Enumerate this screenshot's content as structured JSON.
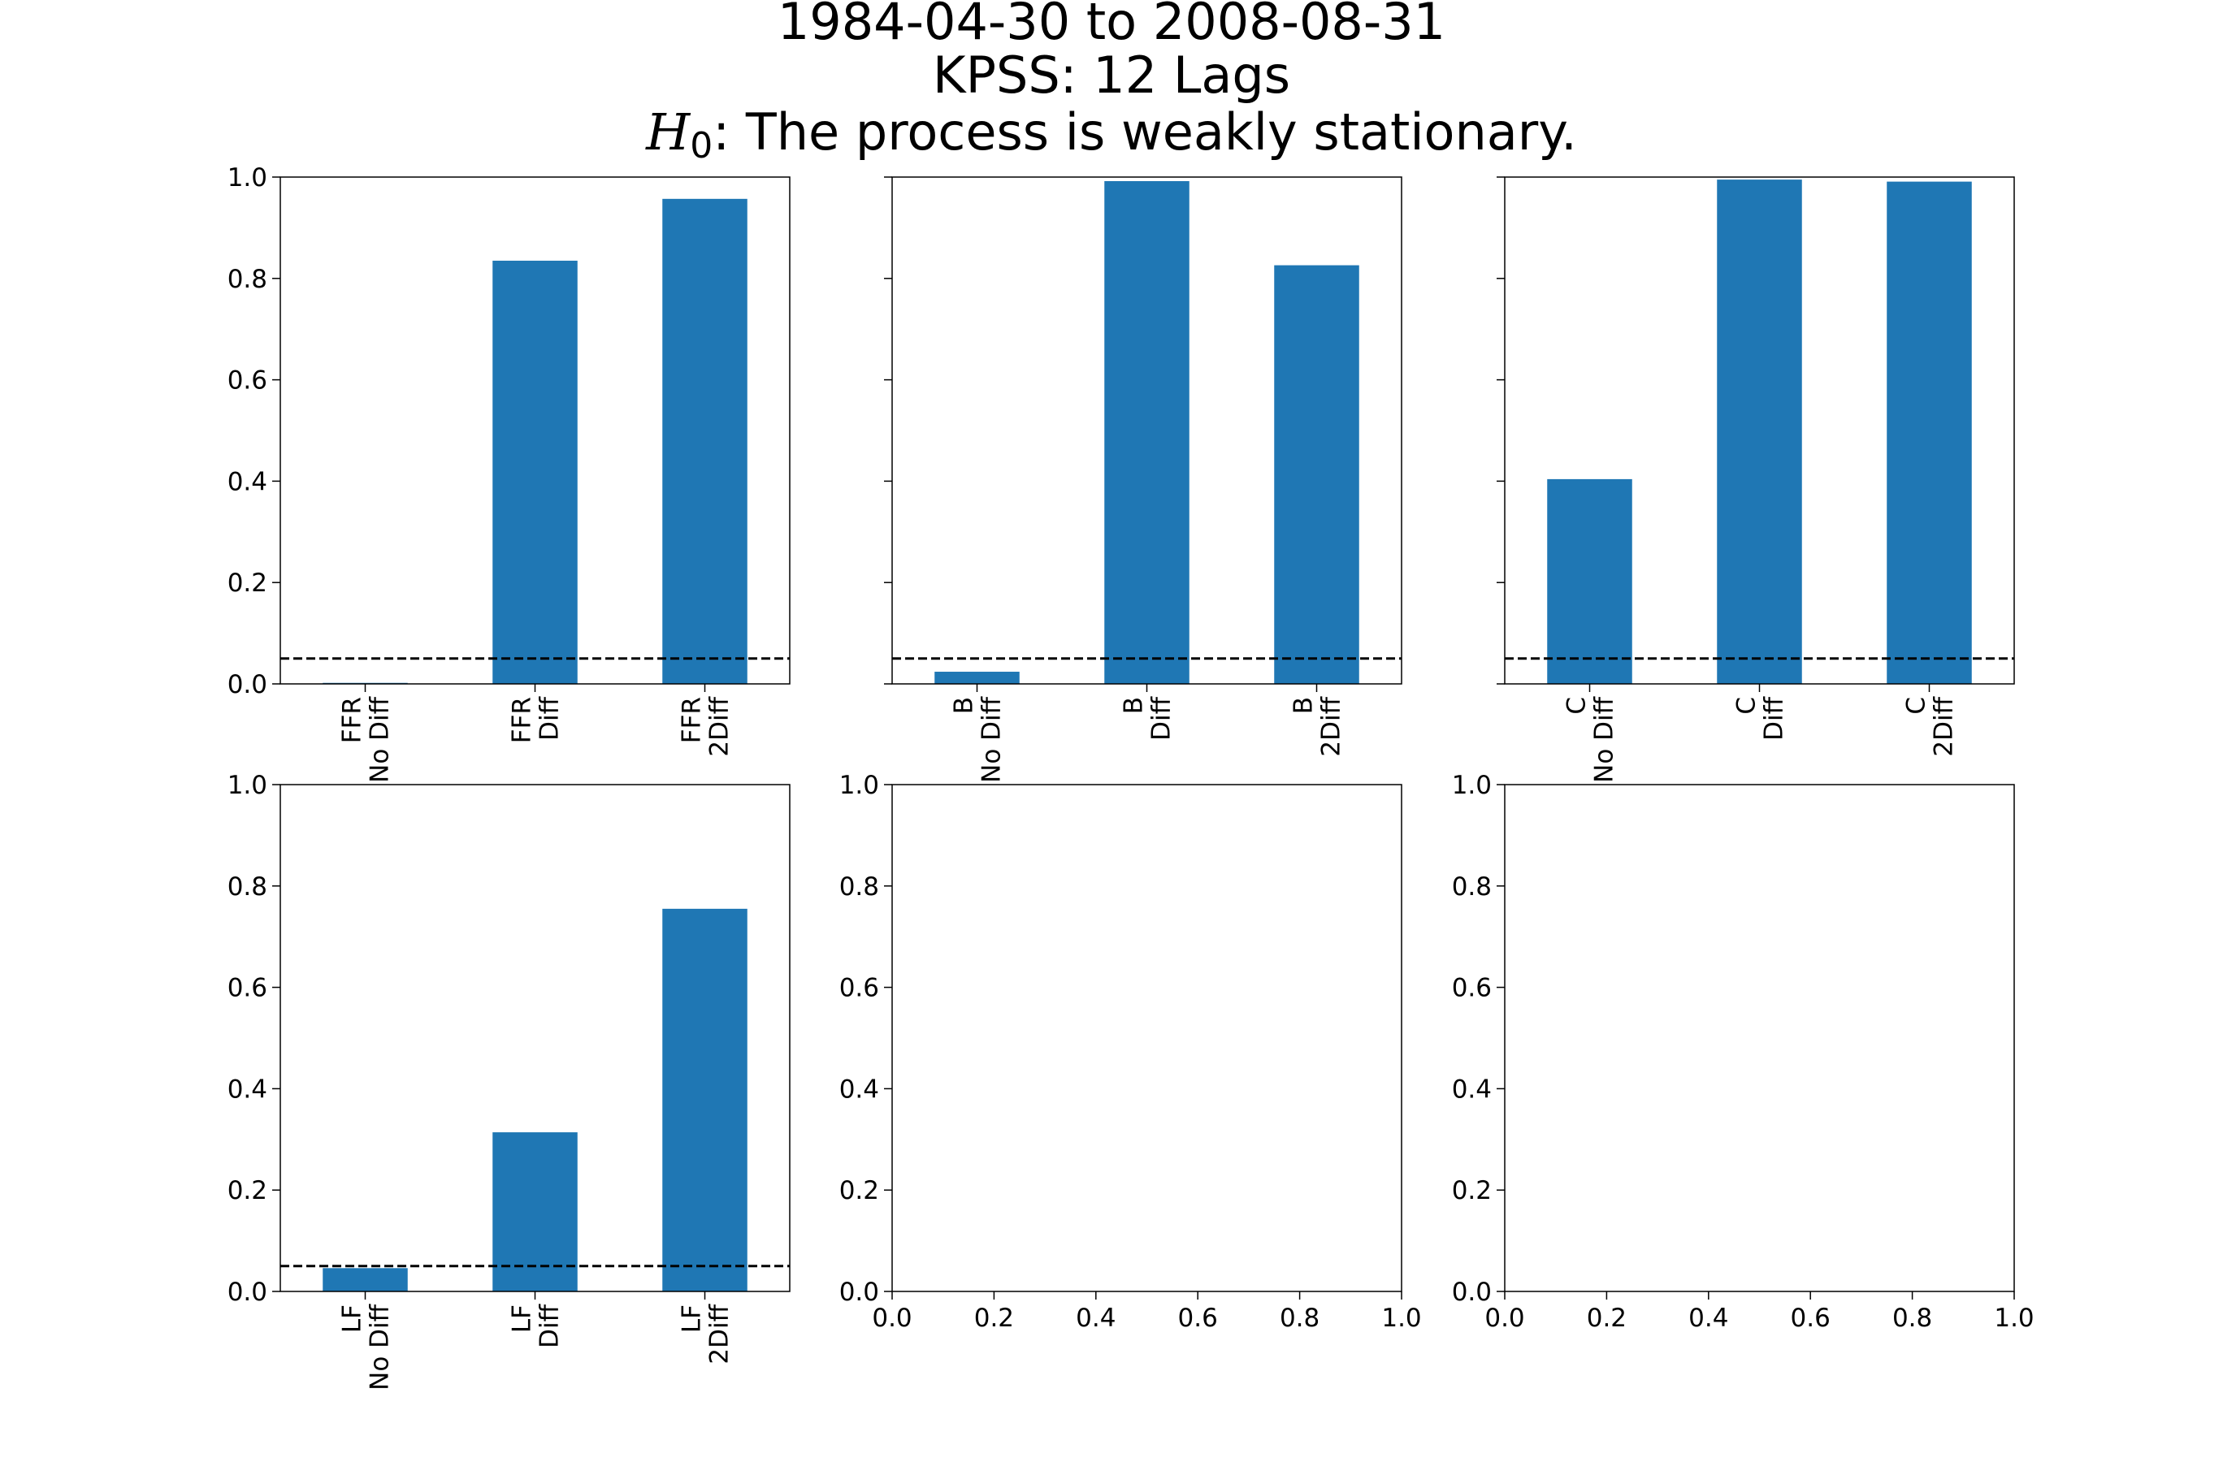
{
  "title": {
    "line1": "1984-04-30 to 2008-08-31",
    "line2": "KPSS: 12 Lags",
    "line3_symbol": "H",
    "line3_subscript": "0",
    "line3_text": ":  The process is weakly stationary."
  },
  "colors": {
    "bar": "#1f77b4",
    "threshold_line": "#000000",
    "axes": "#000000"
  },
  "chart_data": [
    {
      "type": "bar",
      "categories": [
        "FFR\nNo Diff",
        "FFR\nDiff",
        "FFR\n2Diff"
      ],
      "values": [
        0.002,
        0.835,
        0.957
      ],
      "ylim": [
        0,
        1.0
      ],
      "yticks": [
        "0.0",
        "0.2",
        "0.4",
        "0.6",
        "0.8",
        "1.0"
      ],
      "show_ytick_labels": true,
      "threshold": 0.05,
      "threshold_style": "dashed",
      "grid": false
    },
    {
      "type": "bar",
      "categories": [
        "B\nNo Diff",
        "B\nDiff",
        "B\n2Diff"
      ],
      "values": [
        0.024,
        0.992,
        0.826
      ],
      "ylim": [
        0,
        1.0
      ],
      "yticks": [
        "0.0",
        "0.2",
        "0.4",
        "0.6",
        "0.8",
        "1.0"
      ],
      "show_ytick_labels": false,
      "threshold": 0.05,
      "threshold_style": "dashed",
      "grid": false
    },
    {
      "type": "bar",
      "categories": [
        "C\nNo Diff",
        "C\nDiff",
        "C\n2Diff"
      ],
      "values": [
        0.404,
        0.995,
        0.991
      ],
      "ylim": [
        0,
        1.0
      ],
      "yticks": [
        "0.0",
        "0.2",
        "0.4",
        "0.6",
        "0.8",
        "1.0"
      ],
      "show_ytick_labels": false,
      "threshold": 0.05,
      "threshold_style": "dashed",
      "grid": false
    },
    {
      "type": "bar",
      "categories": [
        "LF\nNo Diff",
        "LF\nDiff",
        "LF\n2Diff"
      ],
      "values": [
        0.046,
        0.314,
        0.755
      ],
      "ylim": [
        0,
        1.0
      ],
      "yticks": [
        "0.0",
        "0.2",
        "0.4",
        "0.6",
        "0.8",
        "1.0"
      ],
      "show_ytick_labels": true,
      "threshold": 0.05,
      "threshold_style": "dashed",
      "grid": false
    },
    {
      "type": "empty",
      "xlim": [
        0,
        1.0
      ],
      "ylim": [
        0,
        1.0
      ],
      "xticks": [
        "0.0",
        "0.2",
        "0.4",
        "0.6",
        "0.8",
        "1.0"
      ],
      "yticks": [
        "0.0",
        "0.2",
        "0.4",
        "0.6",
        "0.8",
        "1.0"
      ],
      "show_ytick_labels": true
    },
    {
      "type": "empty",
      "xlim": [
        0,
        1.0
      ],
      "ylim": [
        0,
        1.0
      ],
      "xticks": [
        "0.0",
        "0.2",
        "0.4",
        "0.6",
        "0.8",
        "1.0"
      ],
      "yticks": [
        "0.0",
        "0.2",
        "0.4",
        "0.6",
        "0.8",
        "1.0"
      ],
      "show_ytick_labels": true
    }
  ]
}
